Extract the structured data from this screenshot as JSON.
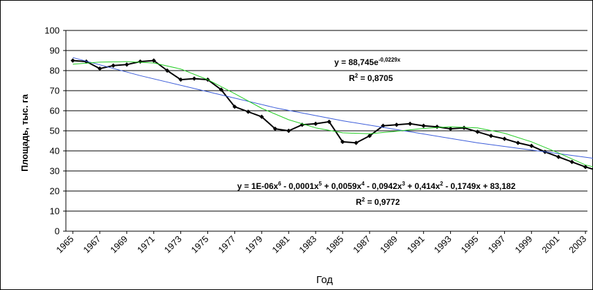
{
  "chart_data": {
    "type": "line",
    "xlabel": "Год",
    "ylabel": "Площадь, тыс. га",
    "ylim": [
      0,
      100
    ],
    "yticks": [
      "0",
      "10",
      "20",
      "30",
      "40",
      "50",
      "60",
      "70",
      "80",
      "90",
      "100"
    ],
    "xlim": [
      1965,
      2005
    ],
    "xticks": [
      "1965",
      "1967",
      "1969",
      "1971",
      "1973",
      "1975",
      "1977",
      "1979",
      "1981",
      "1983",
      "1985",
      "1987",
      "1989",
      "1991",
      "1993",
      "1995",
      "1997",
      "1999",
      "2001",
      "2003"
    ],
    "grid": "horizontal",
    "legend": "none",
    "series": [
      {
        "color": "#000000",
        "marker": "diamond",
        "x": [
          1965,
          1966,
          1967,
          1968,
          1969,
          1970,
          1971,
          1972,
          1973,
          1974,
          1975,
          1976,
          1977,
          1978,
          1979,
          1980,
          1981,
          1982,
          1983,
          1984,
          1985,
          1986,
          1987,
          1988,
          1989,
          1990,
          1991,
          1992,
          1993,
          1994,
          1995,
          1996,
          1997,
          1998,
          1999,
          2000,
          2001,
          2002,
          2003,
          2004
        ],
        "y": [
          85,
          84.5,
          81,
          82.5,
          83,
          84.5,
          85,
          80,
          75.5,
          76,
          75.5,
          70.5,
          62,
          59.5,
          57,
          51,
          50,
          53,
          53.5,
          54.5,
          44.5,
          44,
          47.5,
          52.5,
          53,
          53.5,
          52.5,
          52,
          51,
          51.5,
          49.5,
          47.5,
          46,
          44,
          42.5,
          39.5,
          37,
          34.5,
          32,
          30
        ]
      },
      {
        "color": "#3a5bd9",
        "curve": "exponential-trend",
        "x": [
          1965,
          1970,
          1975,
          1980,
          1985,
          1990,
          1995,
          2000,
          2004.5
        ],
        "y": [
          86.5,
          77.5,
          69.5,
          61.5,
          55,
          49.5,
          44,
          39.5,
          35.5
        ]
      },
      {
        "color": "#22cc22",
        "curve": "polynomial-trend",
        "x": [
          1965,
          1967,
          1969,
          1971,
          1973,
          1975,
          1977,
          1979,
          1981,
          1983,
          1985,
          1987,
          1989,
          1991,
          1993,
          1995,
          1997,
          1999,
          2001,
          2003,
          2004.5
        ],
        "y": [
          83.2,
          84.2,
          84.5,
          83.8,
          80.8,
          75.5,
          68.5,
          61.2,
          55.5,
          51.5,
          49,
          48.5,
          49.8,
          51.2,
          52,
          51.5,
          48.8,
          44.5,
          39,
          33,
          30.5
        ]
      }
    ],
    "annotations": {
      "exp_equation": {
        "base": "y = 88,745e",
        "exponent": "-0,0229x"
      },
      "exp_r2": {
        "r": "R",
        "sup": "2",
        "rest": " = 0,8705"
      },
      "poly_equation": {
        "p1": "y = 1E-06x",
        "s1": "6",
        "p2": " - 0,0001x",
        "s2": "5",
        "p3": " + 0,0059x",
        "s3": "4",
        "p4": " - 0,0942x",
        "s4": "3",
        "p5": " + 0,414x",
        "s5": "2",
        "p6": " - 0,1749x + 83,182"
      },
      "poly_r2": {
        "r": "R",
        "sup": "2",
        "rest": " = 0,9772"
      }
    }
  }
}
